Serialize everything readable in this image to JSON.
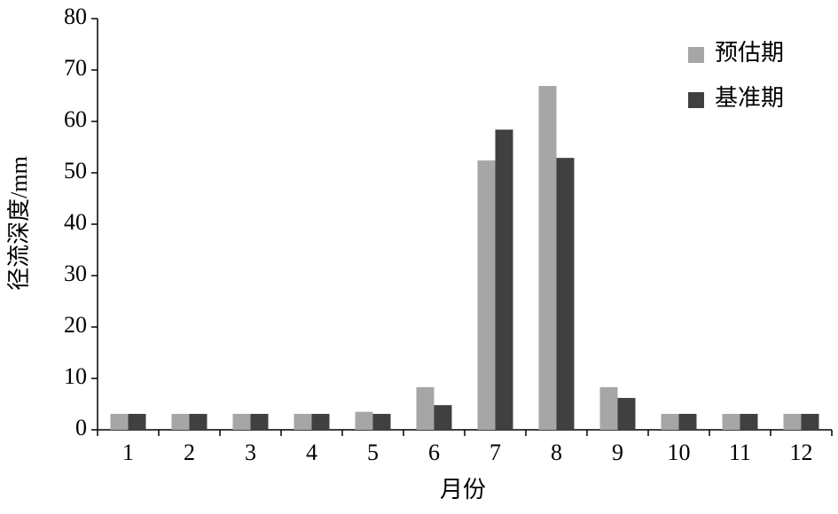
{
  "chart_data": {
    "type": "bar",
    "x_label": "月份",
    "y_label": "径流深度/mm",
    "categories": [
      "1",
      "2",
      "3",
      "4",
      "5",
      "6",
      "7",
      "8",
      "9",
      "10",
      "11",
      "12"
    ],
    "series": [
      {
        "name": "预估期",
        "color": "#a6a6a6",
        "values": [
          3.1,
          3.1,
          3.1,
          3.1,
          3.5,
          8.3,
          52.4,
          66.9,
          8.3,
          3.1,
          3.1,
          3.1
        ]
      },
      {
        "name": "基准期",
        "color": "#404040",
        "values": [
          3.1,
          3.1,
          3.1,
          3.1,
          3.1,
          4.8,
          58.4,
          52.9,
          6.2,
          3.1,
          3.1,
          3.1
        ]
      }
    ],
    "ylim": [
      0,
      80
    ],
    "yticks": [
      0,
      10,
      20,
      30,
      40,
      50,
      60,
      70,
      80
    ],
    "grid": false,
    "legend": "top-right"
  }
}
